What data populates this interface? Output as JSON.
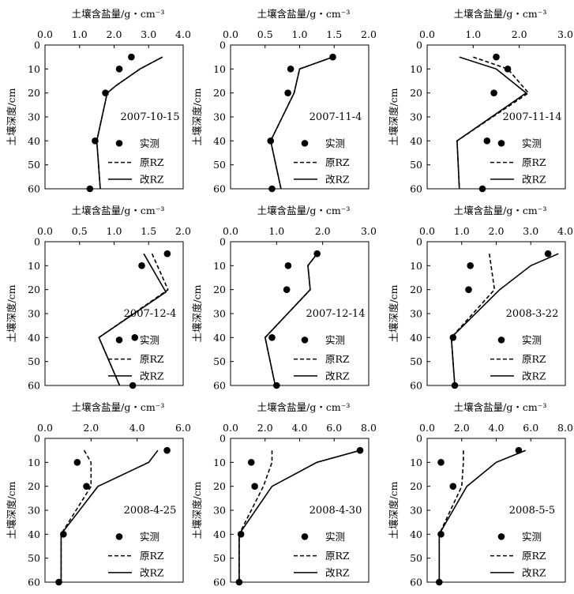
{
  "chart_data": [
    {
      "type": "line",
      "annotation": "2007-10-15",
      "xlabel": "土壤含盐量/g・cm⁻³",
      "ylabel": "土壤深度/cm",
      "xlim": [
        0,
        4.0
      ],
      "xticks": [
        "0.0",
        "1.0",
        "2.0",
        "3.0",
        "4.0"
      ],
      "ylim": [
        0,
        60
      ],
      "yticks": [
        "0",
        "10",
        "20",
        "30",
        "40",
        "50",
        "60"
      ],
      "x_axis_position": "top",
      "legend": [
        "实测",
        "原RZ",
        "改RZ"
      ],
      "legend_position": "lower-right",
      "series": [
        {
          "name": "实测",
          "style": "markers",
          "points": [
            [
              2.5,
              5
            ],
            [
              2.15,
              10
            ],
            [
              1.75,
              20
            ],
            [
              1.45,
              40
            ],
            [
              1.3,
              60
            ]
          ]
        },
        {
          "name": "原RZ",
          "style": "dashed",
          "points": [
            [
              3.4,
              5
            ],
            [
              2.75,
              10
            ],
            [
              2.05,
              17
            ],
            [
              1.8,
              20
            ],
            [
              1.5,
              40
            ],
            [
              1.6,
              60
            ]
          ]
        },
        {
          "name": "改RZ",
          "style": "solid",
          "points": [
            [
              3.4,
              5
            ],
            [
              2.75,
              10
            ],
            [
              2.05,
              17
            ],
            [
              1.8,
              20
            ],
            [
              1.5,
              40
            ],
            [
              1.6,
              60
            ]
          ]
        }
      ]
    },
    {
      "type": "line",
      "annotation": "2007-11-4",
      "xlabel": "土壤含盐量/g・cm⁻³",
      "ylabel": "土壤深度/cm",
      "xlim": [
        0,
        2.0
      ],
      "xticks": [
        "0.0",
        "0.5",
        "1.0",
        "1.5",
        "2.0"
      ],
      "ylim": [
        0,
        60
      ],
      "yticks": [
        "0",
        "10",
        "20",
        "30",
        "40",
        "50",
        "60"
      ],
      "x_axis_position": "top",
      "legend": [
        "实测",
        "原RZ",
        "改RZ"
      ],
      "legend_position": "lower-right",
      "series": [
        {
          "name": "实测",
          "style": "markers",
          "points": [
            [
              1.48,
              5
            ],
            [
              0.87,
              10
            ],
            [
              0.83,
              20
            ],
            [
              0.58,
              40
            ],
            [
              0.6,
              60
            ]
          ]
        },
        {
          "name": "原RZ",
          "style": "dashed",
          "points": [
            [
              1.48,
              5
            ],
            [
              1.0,
              10
            ],
            [
              0.92,
              20
            ],
            [
              0.58,
              40
            ],
            [
              0.73,
              60
            ]
          ]
        },
        {
          "name": "改RZ",
          "style": "solid",
          "points": [
            [
              1.48,
              5
            ],
            [
              1.0,
              10
            ],
            [
              0.92,
              20
            ],
            [
              0.58,
              40
            ],
            [
              0.73,
              60
            ]
          ]
        }
      ]
    },
    {
      "type": "line",
      "annotation": "2007-11-14",
      "xlabel": "土壤含盐量/g・cm⁻³",
      "ylabel": "土壤深度/cm",
      "xlim": [
        0,
        3.0
      ],
      "xticks": [
        "0.0",
        "1.0",
        "2.0",
        "3.0"
      ],
      "ylim": [
        0,
        60
      ],
      "yticks": [
        "0",
        "10",
        "20",
        "30",
        "40",
        "50",
        "60"
      ],
      "x_axis_position": "top",
      "legend": [
        "实测",
        "原RZ",
        "改RZ"
      ],
      "legend_position": "lower-right",
      "series": [
        {
          "name": "实测",
          "style": "markers",
          "points": [
            [
              1.5,
              5
            ],
            [
              1.75,
              10
            ],
            [
              1.45,
              20
            ],
            [
              1.3,
              40
            ],
            [
              1.2,
              60
            ]
          ]
        },
        {
          "name": "原RZ",
          "style": "dashed",
          "points": [
            [
              1.0,
              5
            ],
            [
              1.75,
              10
            ],
            [
              2.2,
              20
            ],
            [
              0.65,
              40
            ],
            [
              0.7,
              60
            ]
          ]
        },
        {
          "name": "改RZ",
          "style": "solid",
          "points": [
            [
              0.7,
              5
            ],
            [
              1.5,
              10
            ],
            [
              2.15,
              20
            ],
            [
              0.65,
              40
            ],
            [
              0.7,
              60
            ]
          ]
        }
      ]
    },
    {
      "type": "line",
      "annotation": "2007-12-4",
      "xlabel": "土壤含盐量/g・cm⁻³",
      "ylabel": "土壤深度/cm",
      "xlim": [
        0,
        2.0
      ],
      "xticks": [
        "0.0",
        "0.5",
        "1.0",
        "1.5",
        "2.0"
      ],
      "ylim": [
        0,
        60
      ],
      "yticks": [
        "0",
        "10",
        "20",
        "30",
        "40",
        "50",
        "60"
      ],
      "x_axis_position": "top",
      "legend": [
        "实测",
        "原RZ",
        "改RZ"
      ],
      "legend_position": "lower-right",
      "series": [
        {
          "name": "实测",
          "style": "markers",
          "points": [
            [
              1.77,
              5
            ],
            [
              1.4,
              10
            ],
            [
              1.3,
              40
            ],
            [
              1.27,
              60
            ]
          ]
        },
        {
          "name": "原RZ",
          "style": "dashed",
          "points": [
            [
              1.55,
              5
            ],
            [
              1.78,
              20
            ],
            [
              0.78,
              40
            ],
            [
              1.08,
              60
            ]
          ]
        },
        {
          "name": "改RZ",
          "style": "solid",
          "points": [
            [
              1.43,
              5
            ],
            [
              1.75,
              21
            ],
            [
              0.78,
              40
            ],
            [
              1.08,
              60
            ]
          ]
        }
      ]
    },
    {
      "type": "line",
      "annotation": "2007-12-14",
      "xlabel": "土壤含盐量/g・cm⁻³",
      "ylabel": "土壤深度/cm",
      "xlim": [
        0,
        3.0
      ],
      "xticks": [
        "0.0",
        "1.0",
        "2.0",
        "3.0"
      ],
      "ylim": [
        0,
        60
      ],
      "yticks": [
        "0",
        "10",
        "20",
        "30",
        "40",
        "50",
        "60"
      ],
      "x_axis_position": "top",
      "legend": [
        "实测",
        "原RZ",
        "改RZ"
      ],
      "legend_position": "lower-right",
      "series": [
        {
          "name": "实测",
          "style": "markers",
          "points": [
            [
              1.88,
              5
            ],
            [
              1.25,
              10
            ],
            [
              1.22,
              20
            ],
            [
              0.9,
              40
            ],
            [
              1.0,
              60
            ]
          ]
        },
        {
          "name": "原RZ",
          "style": "dashed",
          "points": [
            [
              1.88,
              5
            ],
            [
              1.68,
              10
            ],
            [
              1.73,
              20
            ],
            [
              0.75,
              40
            ],
            [
              0.97,
              60
            ]
          ]
        },
        {
          "name": "改RZ",
          "style": "solid",
          "points": [
            [
              1.88,
              5
            ],
            [
              1.68,
              10
            ],
            [
              1.73,
              20
            ],
            [
              0.75,
              40
            ],
            [
              0.97,
              60
            ]
          ]
        }
      ]
    },
    {
      "type": "line",
      "annotation": "2008-3-22",
      "xlabel": "土壤含盐量/g・cm⁻³",
      "ylabel": "土壤深度/cm",
      "xlim": [
        0,
        4.0
      ],
      "xticks": [
        "0.0",
        "1.0",
        "2.0",
        "3.0",
        "4.0"
      ],
      "ylim": [
        0,
        60
      ],
      "yticks": [
        "0",
        "10",
        "20",
        "30",
        "40",
        "50",
        "60"
      ],
      "x_axis_position": "top",
      "legend": [
        "实测",
        "原RZ",
        "改RZ"
      ],
      "legend_position": "lower-right",
      "series": [
        {
          "name": "实测",
          "style": "markers",
          "points": [
            [
              3.5,
              5
            ],
            [
              1.25,
              10
            ],
            [
              1.2,
              20
            ],
            [
              0.75,
              40
            ],
            [
              0.8,
              60
            ]
          ]
        },
        {
          "name": "原RZ",
          "style": "dashed",
          "points": [
            [
              1.8,
              5
            ],
            [
              1.95,
              20
            ],
            [
              0.7,
              40
            ],
            [
              0.8,
              60
            ]
          ]
        },
        {
          "name": "改RZ",
          "style": "solid",
          "points": [
            [
              3.8,
              5
            ],
            [
              3.0,
              10
            ],
            [
              2.1,
              20
            ],
            [
              0.7,
              40
            ],
            [
              0.8,
              60
            ]
          ]
        }
      ]
    },
    {
      "type": "line",
      "annotation": "2008-4-25",
      "xlabel": "土壤含盐量/g・cm⁻³",
      "ylabel": "土壤深度/cm",
      "xlim": [
        0,
        6.0
      ],
      "xticks": [
        "0.0",
        "2.0",
        "4.0",
        "6.0"
      ],
      "ylim": [
        0,
        60
      ],
      "yticks": [
        "0",
        "10",
        "20",
        "30",
        "40",
        "50",
        "60"
      ],
      "x_axis_position": "top",
      "legend": [
        "实测",
        "原RZ",
        "改RZ"
      ],
      "legend_position": "lower-right",
      "series": [
        {
          "name": "实测",
          "style": "markers",
          "points": [
            [
              5.3,
              5
            ],
            [
              1.4,
              10
            ],
            [
              1.8,
              20
            ],
            [
              0.8,
              40
            ],
            [
              0.6,
              60
            ]
          ]
        },
        {
          "name": "原RZ",
          "style": "dashed",
          "points": [
            [
              1.7,
              5
            ],
            [
              2.0,
              10
            ],
            [
              2.0,
              20
            ],
            [
              0.7,
              40
            ],
            [
              0.7,
              60
            ]
          ]
        },
        {
          "name": "改RZ",
          "style": "solid",
          "points": [
            [
              4.9,
              5
            ],
            [
              4.5,
              10
            ],
            [
              2.3,
              20
            ],
            [
              0.7,
              40
            ],
            [
              0.7,
              60
            ]
          ]
        }
      ]
    },
    {
      "type": "line",
      "annotation": "2008-4-30",
      "xlabel": "土壤含盐量/g・cm⁻³",
      "ylabel": "土壤深度/cm",
      "xlim": [
        0,
        8.0
      ],
      "xticks": [
        "0.0",
        "2.0",
        "4.0",
        "6.0",
        "8.0"
      ],
      "ylim": [
        0,
        60
      ],
      "yticks": [
        "0",
        "10",
        "20",
        "30",
        "40",
        "50",
        "60"
      ],
      "x_axis_position": "top",
      "legend": [
        "实测",
        "原RZ",
        "改RZ"
      ],
      "legend_position": "lower-right",
      "series": [
        {
          "name": "实测",
          "style": "markers",
          "points": [
            [
              7.5,
              5
            ],
            [
              1.2,
              10
            ],
            [
              1.4,
              20
            ],
            [
              0.6,
              40
            ],
            [
              0.5,
              60
            ]
          ]
        },
        {
          "name": "原RZ",
          "style": "dashed",
          "points": [
            [
              2.4,
              5
            ],
            [
              2.4,
              10
            ],
            [
              1.9,
              20
            ],
            [
              0.5,
              40
            ],
            [
              0.5,
              60
            ]
          ]
        },
        {
          "name": "改RZ",
          "style": "solid",
          "points": [
            [
              7.5,
              5
            ],
            [
              5.0,
              10
            ],
            [
              2.4,
              20
            ],
            [
              0.5,
              40
            ],
            [
              0.5,
              60
            ]
          ]
        }
      ]
    },
    {
      "type": "line",
      "annotation": "2008-5-5",
      "xlabel": "土壤含盐量/g・cm⁻³",
      "ylabel": "土壤深度/cm",
      "xlim": [
        0,
        8.0
      ],
      "xticks": [
        "0.0",
        "2.0",
        "4.0",
        "6.0",
        "8.0"
      ],
      "ylim": [
        0,
        60
      ],
      "yticks": [
        "0",
        "10",
        "20",
        "30",
        "40",
        "50",
        "60"
      ],
      "x_axis_position": "top",
      "legend": [
        "实测",
        "原RZ",
        "改RZ"
      ],
      "legend_position": "lower-right",
      "series": [
        {
          "name": "实测",
          "style": "markers",
          "points": [
            [
              5.3,
              5
            ],
            [
              0.8,
              10
            ],
            [
              1.5,
              20
            ],
            [
              0.8,
              40
            ],
            [
              0.7,
              60
            ]
          ]
        },
        {
          "name": "原RZ",
          "style": "dashed",
          "points": [
            [
              2.1,
              5
            ],
            [
              2.1,
              10
            ],
            [
              2.0,
              20
            ],
            [
              0.7,
              40
            ],
            [
              0.7,
              60
            ]
          ]
        },
        {
          "name": "改RZ",
          "style": "solid",
          "points": [
            [
              5.7,
              5
            ],
            [
              4.0,
              10
            ],
            [
              2.3,
              20
            ],
            [
              0.7,
              40
            ],
            [
              0.7,
              60
            ]
          ]
        }
      ]
    }
  ]
}
